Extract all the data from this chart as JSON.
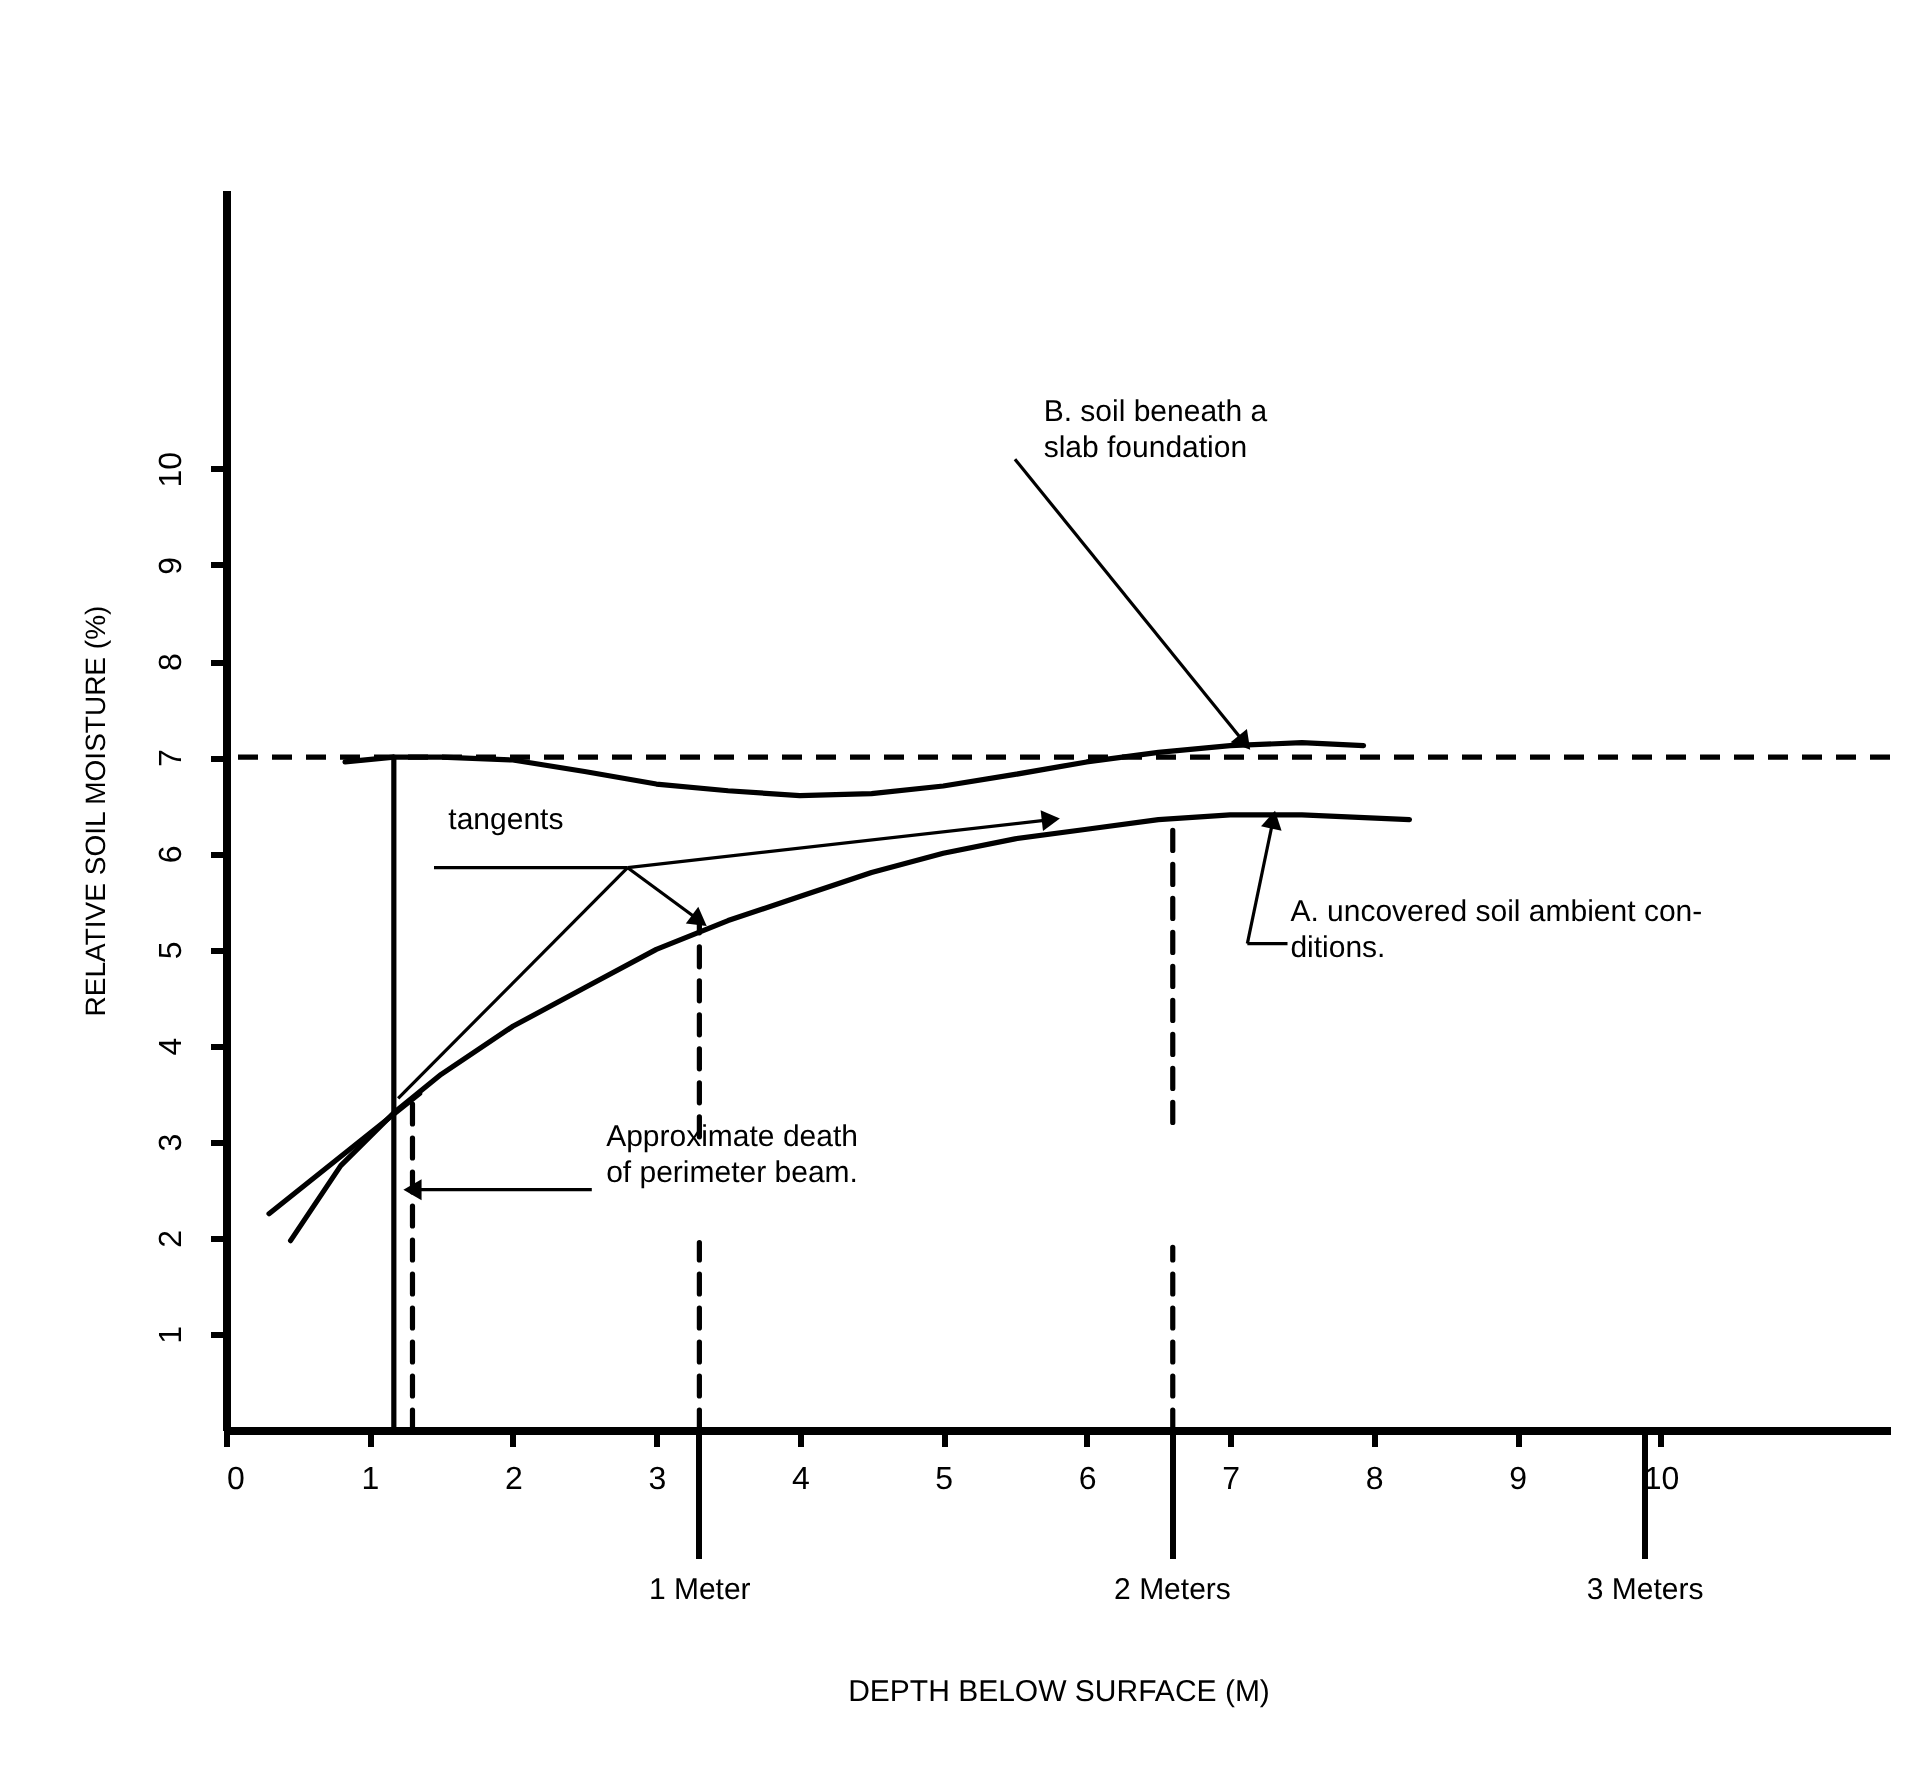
{
  "chart_data": {
    "type": "line",
    "xlabel": "DEPTH BELOW SURFACE (M)",
    "ylabel": "RELATIVE SOIL MOISTURE (%)",
    "xlim": [
      0,
      11.6
    ],
    "ylim": [
      0,
      12.9
    ],
    "xticks": [
      0,
      1,
      2,
      3,
      4,
      5,
      6,
      7,
      8,
      9,
      10
    ],
    "yticks": [
      1,
      2,
      3,
      4,
      5,
      6,
      7,
      8,
      9,
      10
    ],
    "x2lim": [
      0,
      3.52
    ],
    "x2ticks": [
      {
        "value": 1,
        "label": "1 Meter"
      },
      {
        "value": 2,
        "label": "2 Meters"
      },
      {
        "value": 3,
        "label": "3 Meters"
      }
    ],
    "series": [
      {
        "color": "#000000",
        "line_style": "solid",
        "x": [
          0.45,
          0.8,
          1.17,
          1.5,
          2,
          2.5,
          3,
          3.5,
          4,
          4.5,
          5,
          5.5,
          6,
          6.5,
          7,
          7.5,
          8.25
        ],
        "values": [
          1.97,
          2.75,
          3.3,
          3.7,
          4.2,
          4.6,
          5.0,
          5.3,
          5.55,
          5.8,
          6.0,
          6.15,
          6.25,
          6.35,
          6.4,
          6.4,
          6.35
        ]
      },
      {
        "color": "#000000",
        "line_style": "solid",
        "x": [
          0.83,
          1.17,
          1.5,
          2,
          2.5,
          3,
          3.5,
          4,
          4.5,
          5,
          5.5,
          6,
          6.5,
          7,
          7.5,
          7.93
        ],
        "values": [
          6.95,
          7.0,
          7.0,
          6.97,
          6.85,
          6.72,
          6.65,
          6.6,
          6.62,
          6.7,
          6.82,
          6.95,
          7.05,
          7.12,
          7.15,
          7.12
        ]
      },
      {
        "color": "#000000",
        "line_style": "solid",
        "x": [
          0.3,
          1.35
        ],
        "values": [
          2.25,
          3.5
        ]
      },
      {
        "color": "#000000",
        "line_style": "solid",
        "x": [
          1.17,
          1.17
        ],
        "values": [
          0,
          7.0
        ]
      },
      {
        "color": "#000000",
        "line_style": "dashed",
        "x": [
          1.3,
          1.3
        ],
        "values": [
          0,
          3.4
        ]
      },
      {
        "color": "#000000",
        "line_style": "dashed",
        "x": [
          3.3,
          3.3
        ],
        "values": [
          0,
          1.95
        ]
      },
      {
        "color": "#000000",
        "line_style": "dashed",
        "x": [
          3.3,
          3.3
        ],
        "values": [
          3.05,
          5.3
        ]
      },
      {
        "color": "#000000",
        "line_style": "dashed",
        "x": [
          6.6,
          6.6
        ],
        "values": [
          0,
          1.9
        ]
      },
      {
        "color": "#000000",
        "line_style": "dashed",
        "x": [
          6.6,
          6.6
        ],
        "values": [
          3.2,
          6.35
        ]
      }
    ],
    "ref_lines": [
      {
        "axis": "y",
        "value": 7,
        "color": "#000000",
        "line_style": "dashed"
      }
    ],
    "annotations": [
      {
        "text": "B. soil beneath a\nslab foundation",
        "x": 7.1,
        "y": 7.15
      },
      {
        "text": "A. uncovered soil ambient con-\nditions.",
        "x": 7.3,
        "y": 6.35
      },
      "tangents",
      {
        "text": "Approximate death\nof perimeter beam.",
        "x": 1.3,
        "y": 2.5
      }
    ]
  }
}
